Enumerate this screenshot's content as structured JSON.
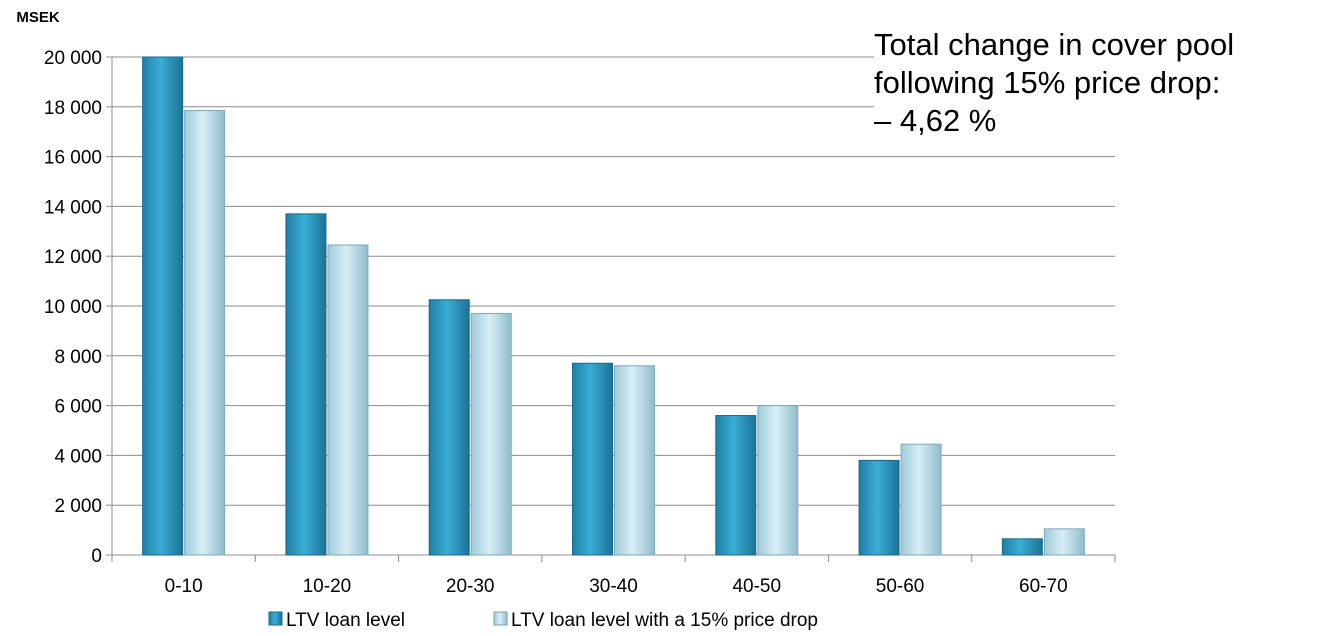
{
  "chart_data": {
    "type": "bar",
    "unit_label": "MSEK",
    "categories": [
      "0-10",
      "10-20",
      "20-30",
      "30-40",
      "40-50",
      "50-60",
      "60-70"
    ],
    "series": [
      {
        "name": "LTV loan level",
        "values": [
          20000,
          13700,
          10250,
          7700,
          5600,
          3800,
          650
        ],
        "color": "#2a9bc4"
      },
      {
        "name": "LTV loan level with a 15% price drop",
        "values": [
          17850,
          12450,
          9700,
          7600,
          6000,
          4450,
          1050
        ],
        "color": "#b7dde9"
      }
    ],
    "ylim": [
      0,
      20000
    ],
    "y_ticks": [
      "0",
      "2 000",
      "4 000",
      "6 000",
      "8 000",
      "10 000",
      "12 000",
      "14 000",
      "16 000",
      "18 000",
      "20 000"
    ],
    "grid": true,
    "legend_position": "bottom",
    "annotation": [
      "Total change in cover pool",
      "following 15% price drop:",
      "– 4,62 %"
    ]
  }
}
